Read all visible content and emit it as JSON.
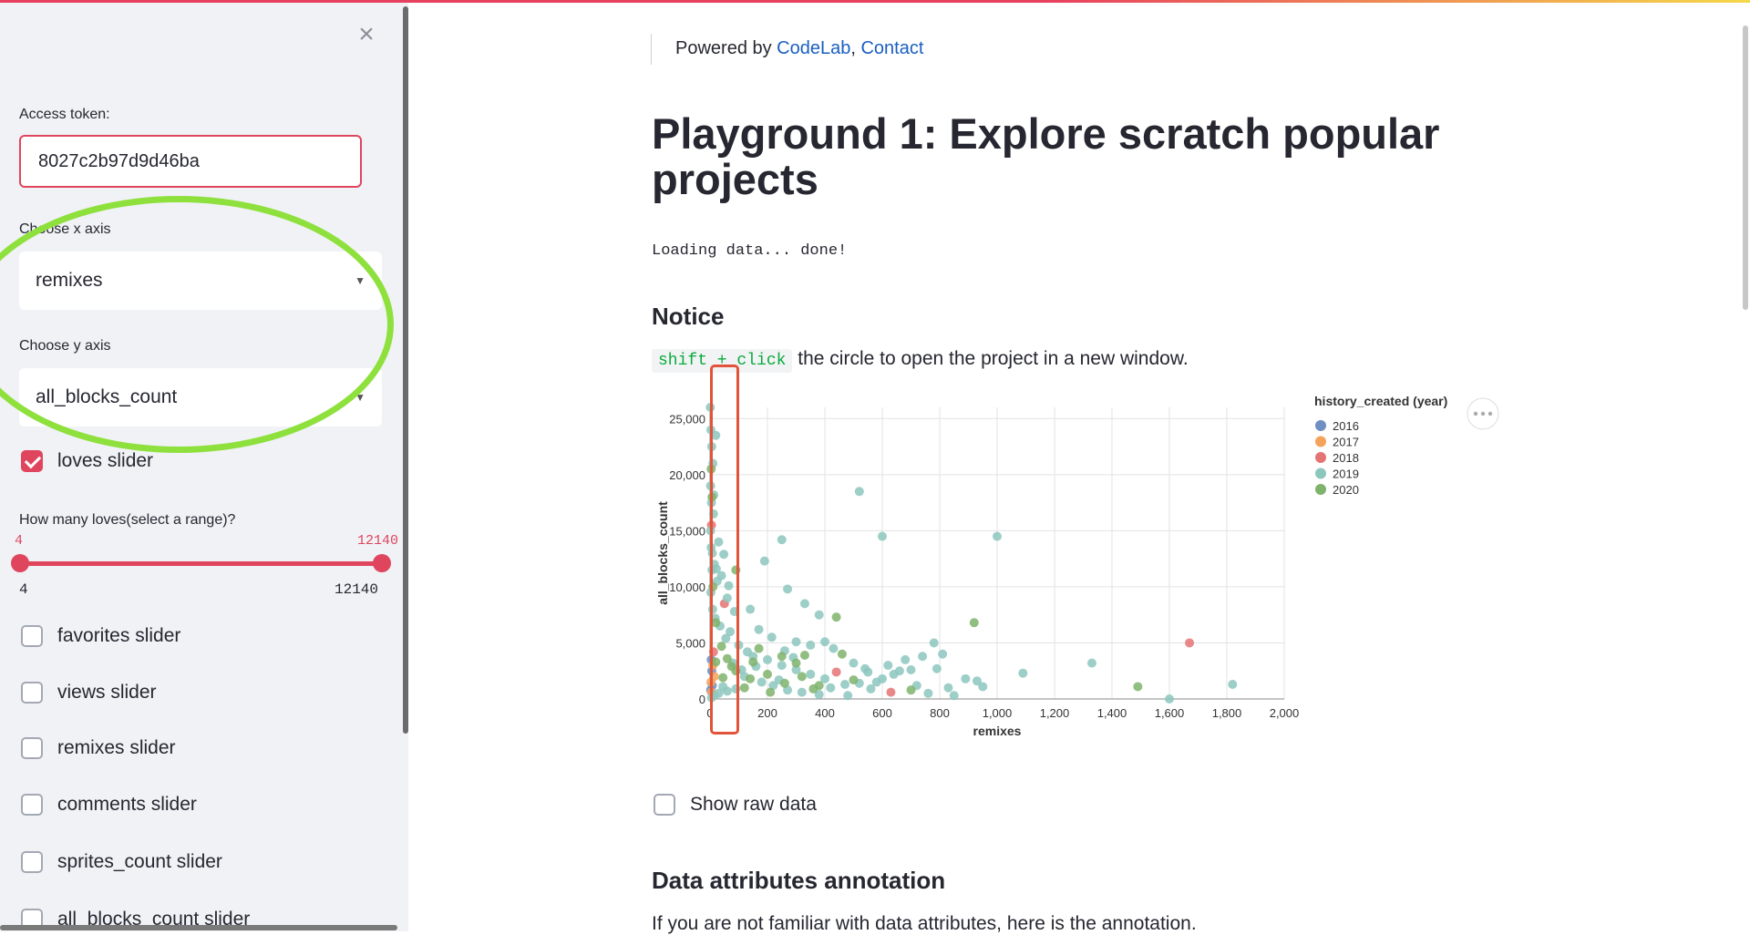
{
  "sidebar": {
    "close_glyph": "×",
    "token_label": "Access token:",
    "token_value": "8027c2b97d9d46ba",
    "x_axis_label": "Choose x axis",
    "x_axis_value": "remixes",
    "y_axis_label": "Choose y axis",
    "y_axis_value": "all_blocks_count",
    "loves_label": "loves slider",
    "range_label": "How many loves(select a range)?",
    "slider": {
      "min": "4",
      "max": "12140",
      "low": "4",
      "high": "12140"
    },
    "checkboxes": [
      {
        "label": "favorites slider"
      },
      {
        "label": "views slider"
      },
      {
        "label": "remixes slider"
      },
      {
        "label": "comments slider"
      },
      {
        "label": "sprites_count slider"
      },
      {
        "label": "all_blocks_count slider"
      }
    ]
  },
  "main": {
    "powered_prefix": "Powered by ",
    "link_codelab": "CodeLab",
    "comma": ", ",
    "link_contact": "Contact",
    "title": "Playground 1: Explore scratch popular projects",
    "loading": "Loading data... done!",
    "notice_heading": "Notice",
    "notice_code": "shift + click",
    "notice_text": " the circle to open the project in a new window.",
    "raw_label": "Show raw data",
    "annot_heading": "Data attributes annotation",
    "annot_text": "If you are not familiar with data attributes, here is the annotation."
  },
  "colors": {
    "accent": "#e0455e",
    "highlight_ellipse": "#8ee03c",
    "highlight_rect": "#e2543a",
    "link": "#1a5fc1"
  },
  "chart_data": {
    "type": "scatter",
    "xlabel": "remixes",
    "ylabel": "all_blocks_count",
    "xlim": [
      0,
      2000
    ],
    "ylim": [
      0,
      26000
    ],
    "xticks": [
      0,
      200,
      400,
      600,
      800,
      1000,
      1200,
      1400,
      1600,
      1800,
      2000
    ],
    "yticks": [
      0,
      5000,
      10000,
      15000,
      20000,
      25000
    ],
    "xtick_labels": [
      "0",
      "200",
      "400",
      "600",
      "800",
      "1,000",
      "1,200",
      "1,400",
      "1,600",
      "1,800",
      "2,000"
    ],
    "ytick_labels": [
      "0",
      "5,000",
      "10,000",
      "15,000",
      "20,000",
      "25,000"
    ],
    "grid": true,
    "legend_title": "history_created (year)",
    "legend_position": "right",
    "series": [
      {
        "name": "2016",
        "color": "#6f8fc2",
        "points": [
          [
            2,
            800
          ],
          [
            6,
            2500
          ],
          [
            4,
            3500
          ],
          [
            8,
            1200
          ]
        ]
      },
      {
        "name": "2017",
        "color": "#f5a35a",
        "points": [
          [
            3,
            1500
          ],
          [
            10,
            3000
          ],
          [
            5,
            600
          ],
          [
            15,
            2000
          ]
        ]
      },
      {
        "name": "2018",
        "color": "#e57373",
        "points": [
          [
            5,
            15500
          ],
          [
            50,
            8500
          ],
          [
            440,
            2400
          ],
          [
            630,
            600
          ],
          [
            1670,
            5000
          ],
          [
            12,
            4200
          ]
        ]
      },
      {
        "name": "2019",
        "color": "#8cc7be",
        "points": [
          [
            1,
            26000
          ],
          [
            3,
            24000
          ],
          [
            6,
            22500
          ],
          [
            10,
            21000
          ],
          [
            20,
            23500
          ],
          [
            2,
            19000
          ],
          [
            5,
            17500
          ],
          [
            12,
            16500
          ],
          [
            30,
            14000
          ],
          [
            8,
            13000
          ],
          [
            15,
            12000
          ],
          [
            40,
            11000
          ],
          [
            60,
            9000
          ],
          [
            25,
            10500
          ],
          [
            2,
            15000
          ],
          [
            4,
            13500
          ],
          [
            7,
            11500
          ],
          [
            3,
            9500
          ],
          [
            9,
            8000
          ],
          [
            18,
            7200
          ],
          [
            35,
            6500
          ],
          [
            70,
            6000
          ],
          [
            55,
            5400
          ],
          [
            100,
            4800
          ],
          [
            130,
            4200
          ],
          [
            150,
            3800
          ],
          [
            200,
            3500
          ],
          [
            250,
            3000
          ],
          [
            300,
            2600
          ],
          [
            350,
            2200
          ],
          [
            400,
            1800
          ],
          [
            120,
            2000
          ],
          [
            180,
            1500
          ],
          [
            220,
            1200
          ],
          [
            90,
            900
          ],
          [
            60,
            700
          ],
          [
            30,
            500
          ],
          [
            15,
            300
          ],
          [
            5,
            100
          ],
          [
            45,
            1100
          ],
          [
            80,
            3200
          ],
          [
            110,
            2600
          ],
          [
            160,
            2900
          ],
          [
            240,
            1700
          ],
          [
            270,
            800
          ],
          [
            320,
            600
          ],
          [
            380,
            400
          ],
          [
            420,
            1000
          ],
          [
            480,
            300
          ],
          [
            520,
            1400
          ],
          [
            560,
            900
          ],
          [
            600,
            1800
          ],
          [
            640,
            2200
          ],
          [
            700,
            2600
          ],
          [
            720,
            1200
          ],
          [
            760,
            500
          ],
          [
            790,
            2700
          ],
          [
            810,
            4000
          ],
          [
            830,
            1000
          ],
          [
            850,
            300
          ],
          [
            520,
            18500
          ],
          [
            600,
            14500
          ],
          [
            1000,
            14500
          ],
          [
            190,
            12300
          ],
          [
            270,
            9800
          ],
          [
            330,
            8500
          ],
          [
            380,
            7500
          ],
          [
            260,
            4300
          ],
          [
            300,
            5100
          ],
          [
            400,
            5100
          ],
          [
            430,
            4500
          ],
          [
            500,
            3200
          ],
          [
            550,
            2400
          ],
          [
            620,
            3000
          ],
          [
            680,
            3500
          ],
          [
            740,
            3800
          ],
          [
            780,
            5000
          ],
          [
            930,
            1600
          ],
          [
            950,
            1100
          ],
          [
            1090,
            2300
          ],
          [
            1330,
            3200
          ],
          [
            1600,
            0
          ],
          [
            1820,
            1300
          ],
          [
            140,
            8000
          ],
          [
            170,
            6200
          ],
          [
            215,
            5500
          ],
          [
            85,
            7800
          ],
          [
            65,
            10100
          ],
          [
            48,
            12900
          ],
          [
            22,
            11600
          ],
          [
            13,
            18200
          ],
          [
            250,
            14200
          ],
          [
            290,
            3700
          ],
          [
            350,
            4800
          ],
          [
            470,
            1300
          ],
          [
            540,
            2700
          ],
          [
            580,
            1500
          ],
          [
            660,
            2500
          ],
          [
            890,
            1800
          ]
        ]
      },
      {
        "name": "2020",
        "color": "#7fb36b",
        "points": [
          [
            4,
            20500
          ],
          [
            7,
            18000
          ],
          [
            10,
            10000
          ],
          [
            20,
            6800
          ],
          [
            40,
            4700
          ],
          [
            60,
            3600
          ],
          [
            90,
            2500
          ],
          [
            140,
            1800
          ],
          [
            200,
            2200
          ],
          [
            260,
            1400
          ],
          [
            320,
            2000
          ],
          [
            380,
            1200
          ],
          [
            440,
            7300
          ],
          [
            460,
            4000
          ],
          [
            210,
            600
          ],
          [
            150,
            3300
          ],
          [
            120,
            1000
          ],
          [
            250,
            3800
          ],
          [
            300,
            3200
          ],
          [
            360,
            900
          ],
          [
            920,
            6800
          ],
          [
            1490,
            1100
          ],
          [
            500,
            1700
          ],
          [
            700,
            800
          ],
          [
            170,
            4500
          ],
          [
            90,
            11500
          ],
          [
            20,
            3300
          ],
          [
            330,
            3900
          ],
          [
            45,
            1900
          ],
          [
            75,
            2900
          ]
        ]
      }
    ]
  }
}
